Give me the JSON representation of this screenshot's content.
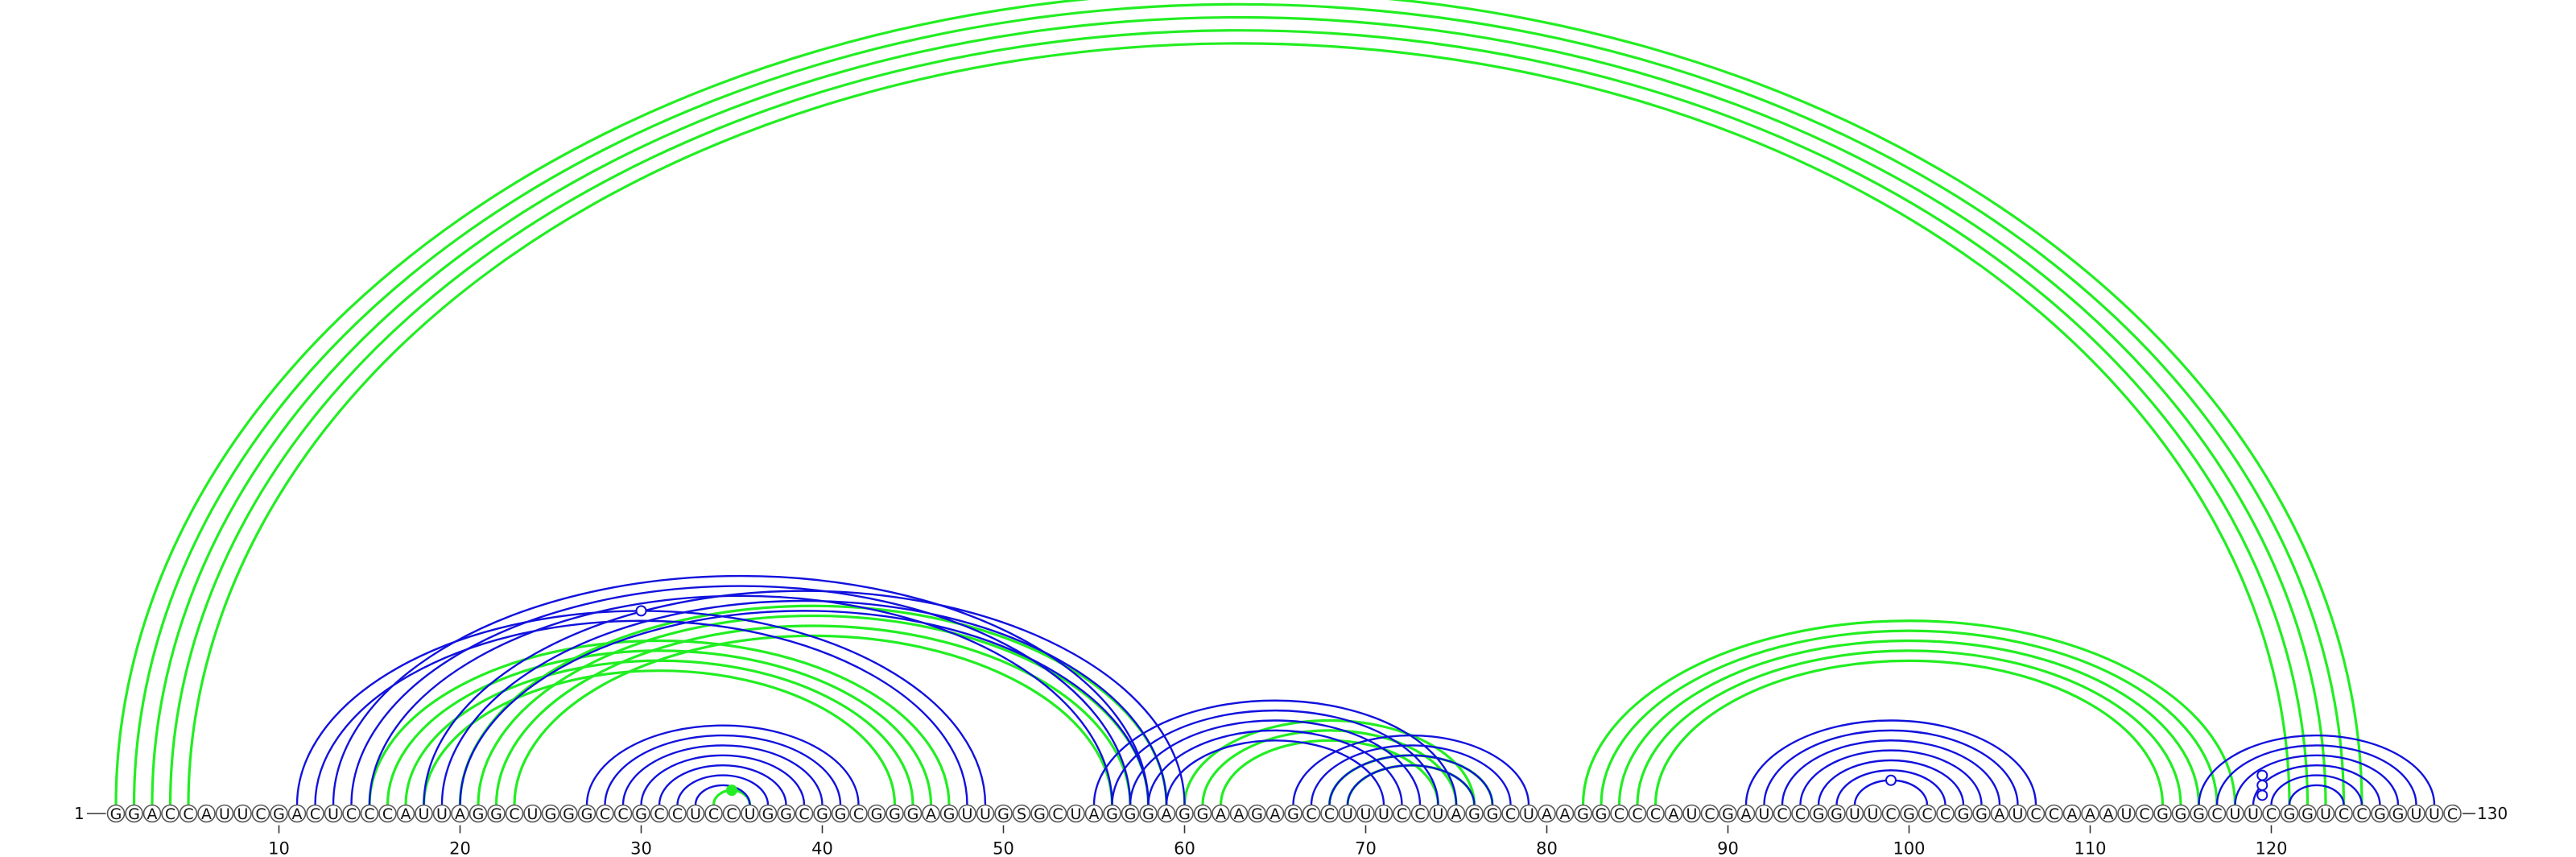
{
  "sequence": "GGACCAUUCGACUCCCAUUAGGCUGGGCCGCCUCCUGGCGGCGGGAGUUGSGCUAGGGAGGAAGAGCCUUUCCUAGGCUAAGGCCCAUCGAUCCGGUUCGCCGGAUCCAAAUCGGGCUUCGGUCCGGUUC",
  "start_label": "1",
  "end_label": "130",
  "ticks": [
    "10",
    "20",
    "30",
    "40",
    "50",
    "60",
    "70",
    "80",
    "90",
    "100",
    "110",
    "120"
  ],
  "tick_positions": [
    10,
    20,
    30,
    40,
    50,
    60,
    70,
    80,
    90,
    100,
    110,
    120
  ],
  "colors": {
    "green": "#22ee22",
    "blue": "#1111dd",
    "circle_stroke": "#555555"
  },
  "helices": [
    {
      "name": "green-long-range",
      "color": "green",
      "pairs": [
        [
          1,
          125
        ],
        [
          2,
          124
        ],
        [
          3,
          123
        ],
        [
          4,
          122
        ],
        [
          5,
          121
        ]
      ]
    },
    {
      "name": "green-a",
      "color": "green",
      "pairs": [
        [
          15,
          47
        ],
        [
          16,
          46
        ],
        [
          17,
          45
        ],
        [
          18,
          44
        ]
      ]
    },
    {
      "name": "green-b",
      "color": "green",
      "pairs": [
        [
          20,
          59
        ],
        [
          21,
          58
        ],
        [
          22,
          57
        ],
        [
          23,
          56
        ]
      ]
    },
    {
      "name": "green-c",
      "color": "green",
      "pairs": [
        [
          34,
          36
        ]
      ]
    },
    {
      "name": "green-d",
      "color": "green",
      "pairs": [
        [
          60,
          76
        ],
        [
          61,
          75
        ],
        [
          62,
          74
        ]
      ]
    },
    {
      "name": "green-e",
      "color": "green",
      "pairs": [
        [
          68,
          77
        ],
        [
          69,
          76
        ]
      ]
    },
    {
      "name": "green-f",
      "color": "green",
      "pairs": [
        [
          82,
          118
        ],
        [
          83,
          117
        ],
        [
          84,
          116
        ],
        [
          85,
          115
        ],
        [
          86,
          114
        ]
      ]
    },
    {
      "name": "blue-a",
      "color": "blue",
      "pairs": [
        [
          11,
          49
        ],
        [
          12,
          48
        ]
      ]
    },
    {
      "name": "blue-b",
      "color": "blue",
      "pairs": [
        [
          13,
          58
        ],
        [
          14,
          57
        ],
        [
          15,
          56
        ]
      ]
    },
    {
      "name": "blue-c",
      "color": "blue",
      "pairs": [
        [
          18,
          60
        ],
        [
          19,
          59
        ],
        [
          20,
          58
        ]
      ]
    },
    {
      "name": "blue-d",
      "color": "blue",
      "pairs": [
        [
          27,
          42
        ],
        [
          28,
          41
        ],
        [
          29,
          40
        ],
        [
          30,
          39
        ],
        [
          31,
          38
        ],
        [
          32,
          37
        ],
        [
          33,
          36
        ]
      ]
    },
    {
      "name": "blue-e",
      "color": "blue",
      "pairs": [
        [
          55,
          75
        ],
        [
          56,
          74
        ],
        [
          57,
          73
        ],
        [
          58,
          72
        ],
        [
          59,
          71
        ]
      ]
    },
    {
      "name": "blue-f",
      "color": "blue",
      "pairs": [
        [
          66,
          79
        ],
        [
          67,
          78
        ],
        [
          68,
          77
        ],
        [
          69,
          76
        ]
      ]
    },
    {
      "name": "blue-g",
      "color": "blue",
      "pairs": [
        [
          91,
          107
        ],
        [
          92,
          106
        ],
        [
          93,
          105
        ],
        [
          94,
          104
        ],
        [
          95,
          103
        ],
        [
          96,
          102
        ],
        [
          97,
          101
        ]
      ]
    },
    {
      "name": "blue-h",
      "color": "blue",
      "pairs": [
        [
          116,
          129
        ],
        [
          117,
          128
        ],
        [
          118,
          127
        ],
        [
          119,
          126
        ],
        [
          120,
          125
        ],
        [
          121,
          124
        ]
      ]
    }
  ],
  "markers": [
    {
      "color": "green",
      "filled": true,
      "pair": [
        34,
        36
      ]
    },
    {
      "color": "blue",
      "filled": false,
      "pair": [
        11,
        49
      ]
    },
    {
      "color": "blue",
      "filled": false,
      "pair": [
        97,
        101
      ]
    },
    {
      "color": "blue",
      "filled": false,
      "pair": [
        117,
        122
      ]
    },
    {
      "color": "blue",
      "filled": false,
      "pair": [
        118,
        121
      ]
    },
    {
      "color": "blue",
      "filled": false,
      "pair": [
        119,
        120
      ]
    }
  ]
}
